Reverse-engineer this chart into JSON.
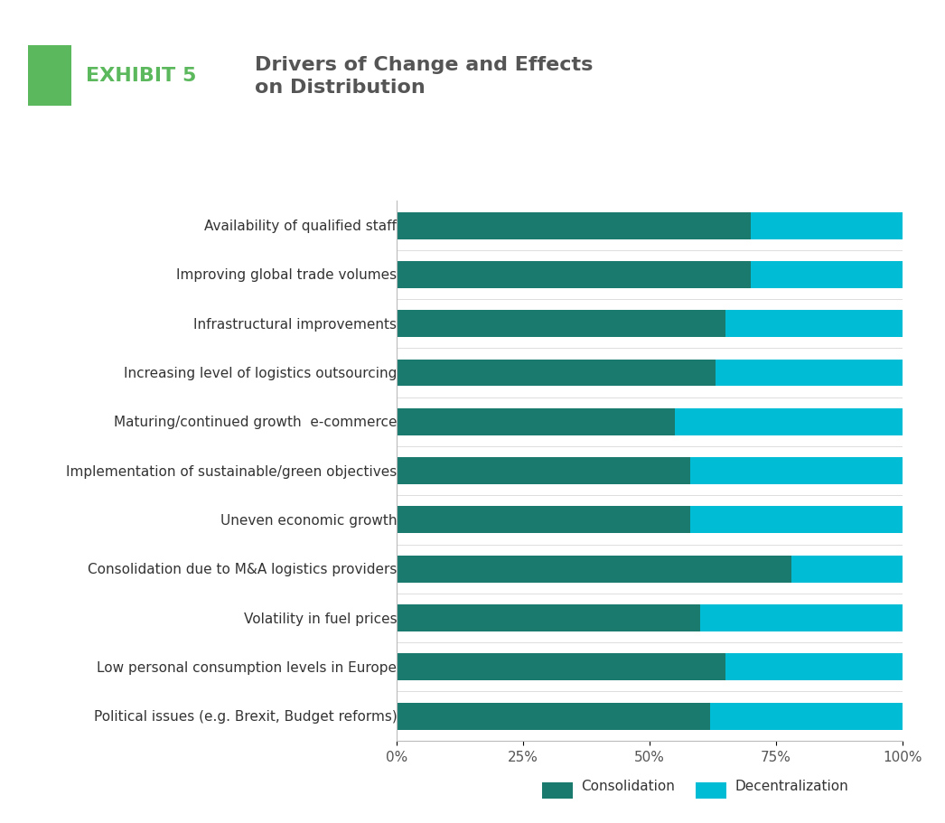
{
  "categories": [
    "Political issues (e.g. Brexit, Budget reforms)",
    "Low personal consumption levels in Europe",
    "Volatility in fuel prices",
    "Consolidation due to M&A logistics providers",
    "Uneven economic growth",
    "Implementation of sustainable/green objectives",
    "Maturing/continued growth  e-commerce",
    "Increasing level of logistics outsourcing",
    "Infrastructural improvements",
    "Improving global trade volumes",
    "Availability of qualified staff"
  ],
  "consolidation": [
    62,
    65,
    60,
    78,
    58,
    58,
    55,
    63,
    65,
    70,
    70
  ],
  "decentralization": [
    38,
    35,
    40,
    22,
    42,
    42,
    45,
    37,
    35,
    30,
    30
  ],
  "color_consolidation": "#1a7a6e",
  "color_decentralization": "#00bcd4",
  "title_exhibit": "EXHIBIT 5",
  "title_main": "Drivers of Change and Effects\non Distribution",
  "legend_consolidation": "Consolidation",
  "legend_decentralization": "Decentralization",
  "exhibit_color": "#5cb85c",
  "title_color": "#555555",
  "exhibit_label_color": "#5cb85c",
  "bar_height": 0.55,
  "xlim": [
    0,
    100
  ],
  "xticks": [
    0,
    25,
    50,
    75,
    100
  ],
  "xticklabels": [
    "0%",
    "25%",
    "50%",
    "75%",
    "100%"
  ],
  "tick_fontsize": 11,
  "background_color": "#ffffff"
}
